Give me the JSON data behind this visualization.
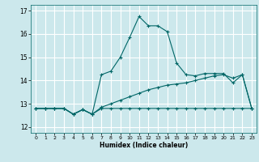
{
  "title": "",
  "xlabel": "Humidex (Indice chaleur)",
  "background_color": "#cce8ec",
  "grid_color": "#ffffff",
  "line_color": "#006666",
  "xlim": [
    -0.5,
    23.5
  ],
  "ylim": [
    11.75,
    17.25
  ],
  "xticks": [
    0,
    1,
    2,
    3,
    4,
    5,
    6,
    7,
    8,
    9,
    10,
    11,
    12,
    13,
    14,
    15,
    16,
    17,
    18,
    19,
    20,
    21,
    22,
    23
  ],
  "yticks": [
    12,
    13,
    14,
    15,
    16,
    17
  ],
  "series_flat_x": [
    0,
    1,
    2,
    3,
    4,
    5,
    6,
    7,
    8,
    9,
    10,
    11,
    12,
    13,
    14,
    15,
    16,
    17,
    18,
    19,
    20,
    21,
    22,
    23
  ],
  "series_flat_y": [
    12.8,
    12.8,
    12.8,
    12.8,
    12.55,
    12.75,
    12.55,
    12.8,
    12.8,
    12.8,
    12.8,
    12.8,
    12.8,
    12.8,
    12.8,
    12.8,
    12.8,
    12.8,
    12.8,
    12.8,
    12.8,
    12.8,
    12.8,
    12.8
  ],
  "series_rise_x": [
    0,
    1,
    2,
    3,
    4,
    5,
    6,
    7,
    8,
    9,
    10,
    11,
    12,
    13,
    14,
    15,
    16,
    17,
    18,
    19,
    20,
    21,
    22,
    23
  ],
  "series_rise_y": [
    12.8,
    12.8,
    12.8,
    12.8,
    12.55,
    12.75,
    12.55,
    12.85,
    13.0,
    13.15,
    13.3,
    13.45,
    13.6,
    13.7,
    13.8,
    13.85,
    13.9,
    14.0,
    14.1,
    14.2,
    14.25,
    14.1,
    14.25,
    12.8
  ],
  "series_peak_x": [
    0,
    1,
    2,
    3,
    4,
    5,
    6,
    7,
    8,
    9,
    10,
    11,
    12,
    13,
    14,
    15,
    16,
    17,
    18,
    19,
    20,
    21,
    22,
    23
  ],
  "series_peak_y": [
    12.8,
    12.8,
    12.8,
    12.8,
    12.55,
    12.75,
    12.55,
    14.25,
    14.4,
    15.0,
    15.85,
    16.75,
    16.35,
    16.35,
    16.1,
    14.75,
    14.25,
    14.2,
    14.3,
    14.3,
    14.3,
    13.9,
    14.25,
    12.8
  ]
}
